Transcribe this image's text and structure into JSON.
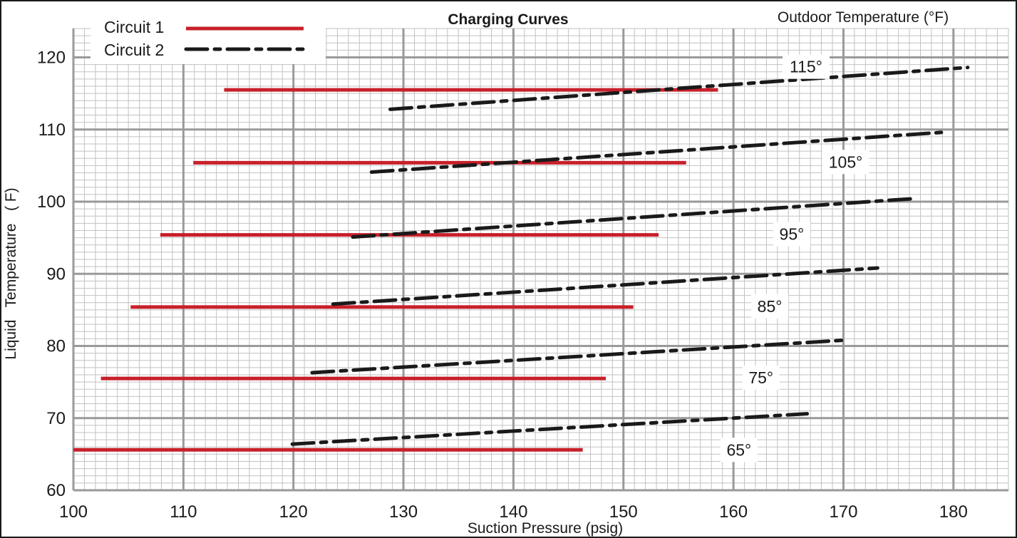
{
  "chart_data": {
    "type": "line",
    "title": "Charging Curves",
    "legend_title": "Outdoor Temperature (°F)",
    "xlabel": "Suction Pressure (psig)",
    "ylabel": "Liquid   Temperature   ( F)",
    "xlim": [
      100,
      185
    ],
    "ylim": [
      60,
      124
    ],
    "x_ticks": [
      "100",
      "110",
      "120",
      "130",
      "140",
      "150",
      "160",
      "170",
      "180"
    ],
    "y_ticks": [
      "60",
      "70",
      "80",
      "90",
      "100",
      "110",
      "120"
    ],
    "grid": true,
    "legend_position": "top-left",
    "legend": [
      {
        "name": "Circuit 1",
        "color": "#c8202a",
        "style": "solid"
      },
      {
        "name": "Circuit 2",
        "color": "#1a1a1a",
        "style": "dash-dot"
      }
    ],
    "series": [
      {
        "name": "Circuit 1",
        "label": "65°",
        "x": [
          100,
          146.3
        ],
        "y": [
          65.6,
          65.6
        ]
      },
      {
        "name": "Circuit 1",
        "label": "75°",
        "x": [
          102.5,
          148.4
        ],
        "y": [
          75.5,
          75.5
        ]
      },
      {
        "name": "Circuit 1",
        "label": "85°",
        "x": [
          105.2,
          150.9
        ],
        "y": [
          85.4,
          85.4
        ]
      },
      {
        "name": "Circuit 1",
        "label": "95°",
        "x": [
          107.9,
          153.2
        ],
        "y": [
          95.4,
          95.4
        ]
      },
      {
        "name": "Circuit 1",
        "label": "105°",
        "x": [
          110.9,
          155.7
        ],
        "y": [
          105.4,
          105.4
        ]
      },
      {
        "name": "Circuit 1",
        "label": "115°",
        "x": [
          113.7,
          158.6
        ],
        "y": [
          115.5,
          115.5
        ]
      },
      {
        "name": "Circuit 2",
        "label": "65°",
        "x": [
          119.9,
          166.7
        ],
        "y": [
          66.4,
          70.6
        ]
      },
      {
        "name": "Circuit 2",
        "label": "75°",
        "x": [
          121.7,
          170.1
        ],
        "y": [
          76.3,
          80.8
        ]
      },
      {
        "name": "Circuit 2",
        "label": "85°",
        "x": [
          123.6,
          173.1
        ],
        "y": [
          85.8,
          90.8
        ]
      },
      {
        "name": "Circuit 2",
        "label": "95°",
        "x": [
          125.4,
          176.2
        ],
        "y": [
          95.1,
          100.4
        ]
      },
      {
        "name": "Circuit 2",
        "label": "105°",
        "x": [
          127.1,
          178.9
        ],
        "y": [
          104.1,
          109.6
        ]
      },
      {
        "name": "Circuit 2",
        "label": "115°",
        "x": [
          128.8,
          181.3
        ],
        "y": [
          112.8,
          118.6
        ]
      }
    ],
    "annotations": [
      {
        "text": "65°",
        "x": 160.5,
        "y": 65.6
      },
      {
        "text": "75°",
        "x": 162.5,
        "y": 75.6
      },
      {
        "text": "85°",
        "x": 163.3,
        "y": 85.5
      },
      {
        "text": "95°",
        "x": 165.3,
        "y": 95.5
      },
      {
        "text": "105°",
        "x": 170.2,
        "y": 105.5
      },
      {
        "text": "115°",
        "x": 166.6,
        "y": 118.7
      }
    ]
  }
}
